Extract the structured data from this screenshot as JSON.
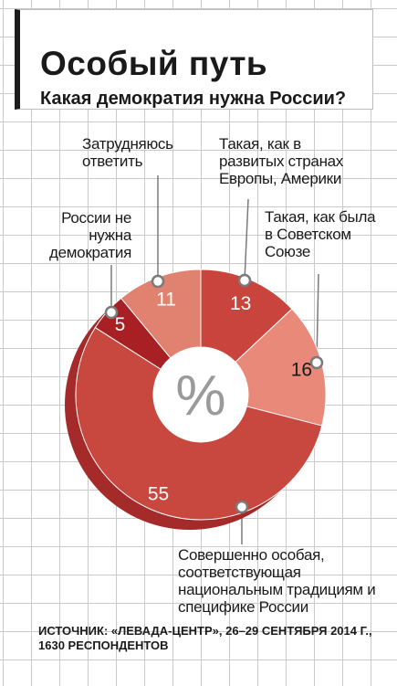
{
  "title": "Особый путь",
  "subtitle": "Какая демократия нужна России?",
  "center_symbol": "%",
  "source": "ИСТОЧНИК: «ЛЕВАДА-ЦЕНТР», 26–29 СЕНТЯБРЯ 2014 Г.,\n1630 РЕСПОНДЕНТОВ",
  "colors": {
    "very_special": "#c8473e",
    "western": "#c9443c",
    "soviet": "#e8897a",
    "hard_to_say": "#e0826f",
    "not_needed": "#a81f24",
    "extrusion": "#a52a2a",
    "grid": "#c9c9c9"
  },
  "chart_data": {
    "type": "pie",
    "variant": "donut",
    "title": "Особый путь",
    "subtitle": "Какая демократия нужна России?",
    "unit": "%",
    "slices": [
      {
        "label": "Такая, как в развитых странах Европы, Америки",
        "value": 13,
        "color": "#c9443c"
      },
      {
        "label": "Такая, как была в Советском Союзе",
        "value": 16,
        "color": "#e8897a"
      },
      {
        "label": "Совершенно особая, соответствующая национальным традициям и специфике России",
        "value": 55,
        "color": "#c8473e"
      },
      {
        "label": "России не нужна демократия",
        "value": 5,
        "color": "#a81f24"
      },
      {
        "label": "Затрудняюсь ответить",
        "value": 11,
        "color": "#e0826f"
      }
    ]
  }
}
